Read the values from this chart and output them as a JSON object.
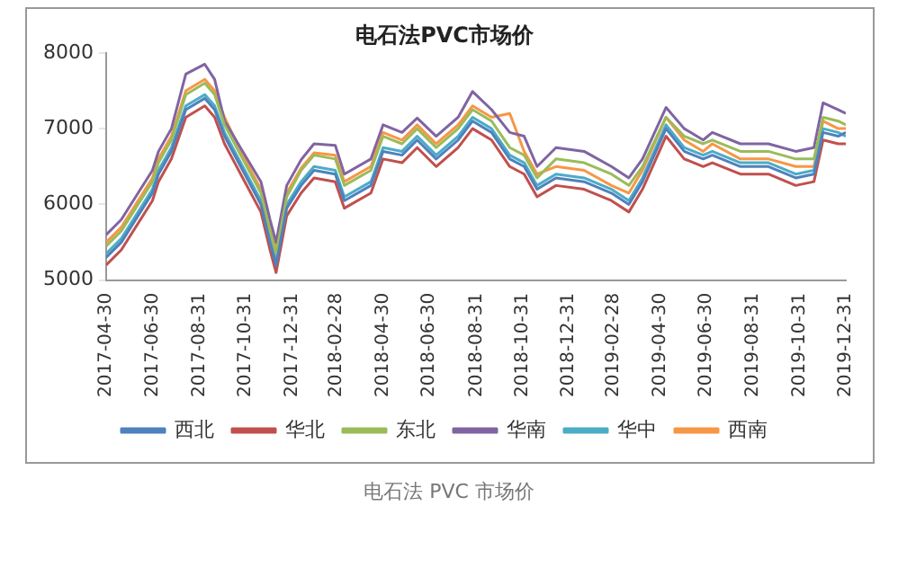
{
  "chart_data": {
    "type": "line",
    "title": "电石法PVC市场价",
    "annotations": [
      "电石法 PVC 市场价"
    ],
    "x": [
      "2017-04-30",
      "2017-05-20",
      "2017-06-30",
      "2017-07-08",
      "2017-07-25",
      "2017-08-13",
      "2017-09-07",
      "2017-09-20",
      "2017-10-03",
      "2017-10-27",
      "2017-11-20",
      "2017-12-02",
      "2017-12-10",
      "2017-12-24",
      "2018-01-12",
      "2018-01-29",
      "2018-02-26",
      "2018-03-10",
      "2018-04-14",
      "2018-04-30",
      "2018-05-25",
      "2018-06-14",
      "2018-07-09",
      "2018-08-07",
      "2018-08-26",
      "2018-09-20",
      "2018-10-14",
      "2018-11-02",
      "2018-11-19",
      "2018-12-14",
      "2019-01-20",
      "2019-02-25",
      "2019-03-20",
      "2019-04-07",
      "2019-05-08",
      "2019-06-01",
      "2019-06-26",
      "2019-07-08",
      "2019-08-14",
      "2019-09-20",
      "2019-10-26",
      "2019-11-19",
      "2019-12-01",
      "2019-12-21",
      "2019-12-31"
    ],
    "series": [
      {
        "name": "西北",
        "color": "#4f81bd",
        "values": [
          5300,
          5500,
          6150,
          6400,
          6700,
          7250,
          7400,
          7250,
          6900,
          6450,
          6000,
          5500,
          5200,
          5950,
          6250,
          6450,
          6400,
          6050,
          6250,
          6700,
          6650,
          6850,
          6600,
          6850,
          7100,
          6950,
          6600,
          6500,
          6200,
          6350,
          6300,
          6150,
          6000,
          6300,
          7000,
          6700,
          6600,
          6650,
          6500,
          6500,
          6350,
          6400,
          6950,
          6900,
          6950
        ]
      },
      {
        "name": "华北",
        "color": "#c0504d",
        "values": [
          5200,
          5400,
          6050,
          6300,
          6600,
          7150,
          7300,
          7150,
          6800,
          6350,
          5900,
          5400,
          5100,
          5850,
          6150,
          6350,
          6300,
          5950,
          6150,
          6600,
          6550,
          6750,
          6500,
          6750,
          7000,
          6850,
          6500,
          6400,
          6100,
          6250,
          6200,
          6050,
          5900,
          6200,
          6900,
          6600,
          6500,
          6550,
          6400,
          6400,
          6250,
          6300,
          6850,
          6800,
          6800
        ]
      },
      {
        "name": "东北",
        "color": "#9bbb59",
        "values": [
          5450,
          5650,
          6300,
          6550,
          6850,
          7450,
          7600,
          7450,
          7050,
          6600,
          6150,
          5650,
          5350,
          6100,
          6450,
          6650,
          6600,
          6250,
          6450,
          6900,
          6800,
          7000,
          6750,
          7000,
          7250,
          7100,
          6750,
          6650,
          6350,
          6600,
          6550,
          6400,
          6250,
          6500,
          7150,
          6900,
          6800,
          6850,
          6700,
          6700,
          6600,
          6600,
          7150,
          7100,
          7050
        ]
      },
      {
        "name": "华南",
        "color": "#8064a2",
        "values": [
          5600,
          5800,
          6450,
          6700,
          7000,
          7720,
          7850,
          7650,
          7100,
          6700,
          6300,
          5800,
          5500,
          6250,
          6590,
          6800,
          6780,
          6400,
          6600,
          7050,
          6950,
          7140,
          6900,
          7150,
          7490,
          7250,
          6950,
          6900,
          6500,
          6750,
          6700,
          6500,
          6350,
          6600,
          7280,
          7000,
          6850,
          6950,
          6800,
          6800,
          6700,
          6750,
          7340,
          7250,
          7200
        ]
      },
      {
        "name": "华中",
        "color": "#4bacc6",
        "values": [
          5350,
          5550,
          6200,
          6450,
          6750,
          7300,
          7450,
          7300,
          6950,
          6500,
          6050,
          5550,
          5250,
          6000,
          6300,
          6500,
          6450,
          6100,
          6300,
          6750,
          6700,
          6900,
          6650,
          6900,
          7150,
          7000,
          6650,
          6550,
          6250,
          6400,
          6350,
          6200,
          6050,
          6350,
          7050,
          6750,
          6650,
          6700,
          6550,
          6550,
          6400,
          6450,
          7000,
          6950,
          6900
        ]
      },
      {
        "name": "西南",
        "color": "#f79646",
        "values": [
          5500,
          5700,
          6350,
          6600,
          6900,
          7500,
          7650,
          7500,
          7150,
          6650,
          6200,
          5700,
          5400,
          6150,
          6480,
          6680,
          6650,
          6300,
          6500,
          6950,
          6850,
          7050,
          6800,
          7050,
          7300,
          7150,
          7200,
          6700,
          6400,
          6500,
          6450,
          6250,
          6150,
          6450,
          7150,
          6850,
          6700,
          6800,
          6600,
          6600,
          6500,
          6500,
          7100,
          7000,
          7000
        ]
      }
    ],
    "xlim": [
      "2017-04-30",
      "2019-12-31"
    ],
    "xticks": [
      "2017-04-30",
      "2017-06-30",
      "2017-08-31",
      "2017-10-31",
      "2017-12-31",
      "2018-02-28",
      "2018-04-30",
      "2018-06-30",
      "2018-08-31",
      "2018-10-31",
      "2018-12-31",
      "2019-02-28",
      "2019-04-30",
      "2019-06-30",
      "2019-08-31",
      "2019-10-31",
      "2019-12-31"
    ],
    "ylim": [
      5000,
      8000
    ],
    "yticks": [
      5000,
      6000,
      7000,
      8000
    ],
    "grid": false,
    "legend": "bottom",
    "marker": "none",
    "line_style": "solid"
  }
}
